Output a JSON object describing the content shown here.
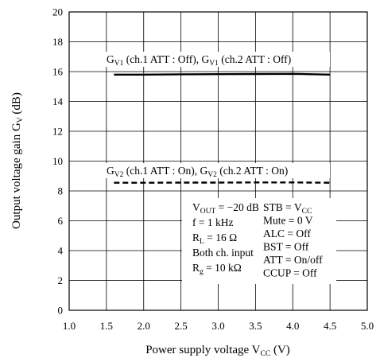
{
  "chart_data": {
    "type": "line",
    "xlabel": {
      "main": "Power supply voltage  V",
      "sub": "CC",
      "unit": "  (V)"
    },
    "ylabel": {
      "main": "Output voltage gain  G",
      "sub": "V",
      "unit": "  (dB)"
    },
    "xlim": [
      1.0,
      5.0
    ],
    "ylim": [
      0,
      20
    ],
    "x_ticks": [
      "1.0",
      "1.5",
      "2.0",
      "2.5",
      "3.0",
      "3.5",
      "4.0",
      "4.5",
      "5.0"
    ],
    "y_ticks": [
      "0",
      "2",
      "4",
      "6",
      "8",
      "10",
      "12",
      "14",
      "16",
      "18",
      "20"
    ],
    "grid": true,
    "series": [
      {
        "name": "GV1 (ch.1 ATT : Off), GV1 (ch.2 ATT : Off)",
        "style": "solid",
        "color": "#000000",
        "x": [
          1.6,
          2.0,
          2.5,
          3.0,
          3.5,
          4.0,
          4.5
        ],
        "y": [
          15.8,
          15.8,
          15.82,
          15.83,
          15.84,
          15.85,
          15.8
        ]
      },
      {
        "name": "GV2 (ch.1 ATT : On), GV2 (ch.2 ATT : On)",
        "style": "dashed",
        "color": "#000000",
        "x": [
          1.6,
          2.0,
          2.5,
          3.0,
          3.5,
          4.0,
          4.5
        ],
        "y": [
          8.55,
          8.55,
          8.56,
          8.56,
          8.57,
          8.57,
          8.55
        ]
      }
    ],
    "series_labels": [
      {
        "parts": [
          [
            "G",
            ""
          ],
          [
            "V1",
            "sub"
          ],
          [
            " (ch.1 ATT : Off), G",
            ""
          ],
          [
            "V1",
            "sub"
          ],
          [
            " (ch.2 ATT : Off)",
            ""
          ]
        ]
      },
      {
        "parts": [
          [
            "G",
            ""
          ],
          [
            "V2",
            "sub"
          ],
          [
            " (ch.1 ATT : On), G",
            ""
          ],
          [
            "V2",
            "sub"
          ],
          [
            " (ch.2 ATT : On)",
            ""
          ]
        ]
      }
    ],
    "conditions_left": [
      {
        "parts": [
          [
            "V",
            ""
          ],
          [
            "OUT",
            "sub"
          ],
          [
            " = −20 dB",
            ""
          ]
        ]
      },
      {
        "parts": [
          [
            "f = 1 kHz",
            ""
          ]
        ]
      },
      {
        "parts": [
          [
            "R",
            ""
          ],
          [
            "L",
            "sub"
          ],
          [
            " = 16 Ω",
            ""
          ]
        ]
      },
      {
        "parts": [
          [
            "Both ch. input",
            ""
          ]
        ]
      },
      {
        "parts": [
          [
            "R",
            ""
          ],
          [
            "g",
            "sub"
          ],
          [
            " = 10 kΩ",
            ""
          ]
        ]
      }
    ],
    "conditions_right": [
      {
        "parts": [
          [
            "STB = V",
            ""
          ],
          [
            "CC",
            "sub"
          ]
        ]
      },
      {
        "parts": [
          [
            "Mute = 0 V",
            ""
          ]
        ]
      },
      {
        "parts": [
          [
            "ALC = Off",
            ""
          ]
        ]
      },
      {
        "parts": [
          [
            "BST = Off",
            ""
          ]
        ]
      },
      {
        "parts": [
          [
            "ATT = On/off",
            ""
          ]
        ]
      },
      {
        "parts": [
          [
            "CCUP = Off",
            ""
          ]
        ]
      }
    ]
  }
}
